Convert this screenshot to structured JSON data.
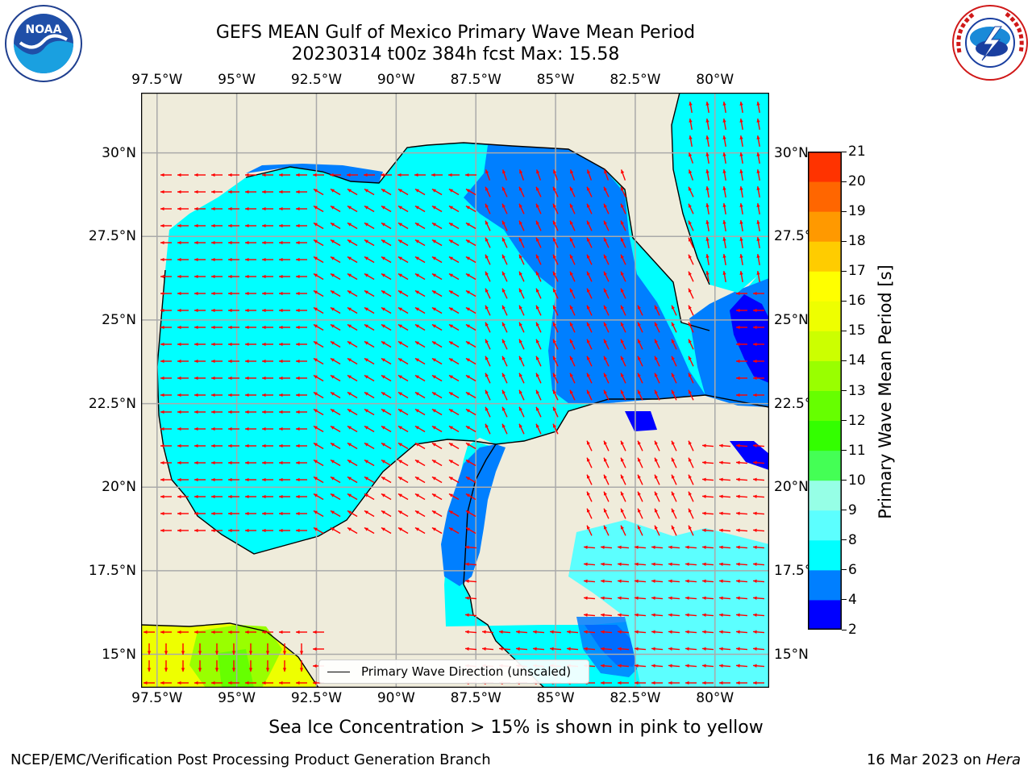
{
  "header": {
    "title_line1": "GEFS MEAN Gulf of Mexico Primary Wave Mean Period",
    "title_line2": "20230314 t00z 384h fcst   Max: 15.58"
  },
  "logos": {
    "left": {
      "name": "noaa-logo",
      "text": "NOAA",
      "ring_text": "NATIONAL OCEANIC AND ATMOSPHERIC ADMINISTRATION · U.S. DEPARTMENT OF COMMERCE"
    },
    "right": {
      "name": "nws-logo",
      "ring_text": "NATIONAL WEATHER SERVICE"
    }
  },
  "map": {
    "lon_labels": [
      "97.5°W",
      "95°W",
      "92.5°W",
      "90°W",
      "87.5°W",
      "85°W",
      "82.5°W",
      "80°W"
    ],
    "lat_labels_left": [
      "30°N",
      "27.5°N",
      "25°N",
      "22.5°N",
      "20°N",
      "17.5°N",
      "15°N"
    ],
    "lat_labels_right": [
      "30°N",
      "27.5°N",
      "25°N",
      "22.5°N",
      "20°N",
      "17.5°N",
      "15°N"
    ],
    "lon_values": [
      -97.5,
      -95,
      -92.5,
      -90,
      -87.5,
      -85,
      -82.5,
      -80
    ],
    "lat_values": [
      30,
      27.5,
      25,
      22.5,
      20,
      17.5,
      15
    ],
    "extent": {
      "lon_min": -98,
      "lon_max": -78.3,
      "lat_min": 14,
      "lat_max": 31.8
    },
    "land_color": "#efecdb",
    "arrow_color": "#ff0000",
    "legend_label": "Primary Wave Direction (unscaled)"
  },
  "colorbar": {
    "label": "Primary Wave Mean Period [s]",
    "ticks": [
      "2",
      "4",
      "6",
      "8",
      "9",
      "10",
      "11",
      "12",
      "13",
      "14",
      "15",
      "16",
      "17",
      "18",
      "19",
      "20",
      "21"
    ],
    "colors": [
      "#0000ff",
      "#007fff",
      "#00ffff",
      "#5cffff",
      "#96ffe6",
      "#44ff55",
      "#33ff00",
      "#66ff00",
      "#99ff00",
      "#ccff00",
      "#eeff00",
      "#ffff00",
      "#ffcc00",
      "#ff9900",
      "#ff6600",
      "#ff3300",
      "#ff0000"
    ]
  },
  "footer": {
    "note": "Sea Ice Concentration > 15% is shown in pink to yellow",
    "credit_left": "NCEP/EMC/Verification Post Processing Product Generation Branch",
    "date_text": "16 Mar 2023 on",
    "machine": "Hera"
  }
}
